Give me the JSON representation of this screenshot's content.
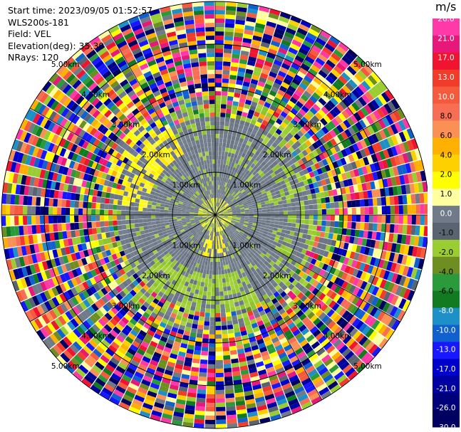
{
  "header": {
    "start_time": "Start time: 2023/09/05 01:52:57",
    "instrument": "WLS200s-181",
    "field": "Field: VEL",
    "elevation": "Elevation(deg): 35.30",
    "nrays": "NRays: 120"
  },
  "colorbar": {
    "unit": "m/s",
    "ticks": [
      "26.0",
      "21.0",
      "17.0",
      "13.0",
      "10.0",
      "8.0",
      "6.0",
      "4.0",
      "2.0",
      "1.0",
      "0.0",
      "-1.0",
      "-2.0",
      "-4.0",
      "-6.0",
      "-8.0",
      "-10.0",
      "-13.0",
      "-17.0",
      "-21.0",
      "-26.0",
      "-30.0"
    ],
    "colors": [
      "#ff3aa8",
      "#e8187a",
      "#f01430",
      "#f03c28",
      "#f55a3c",
      "#f86e55",
      "#fa9055",
      "#ffb000",
      "#ffd000",
      "#ffff00",
      "#ffffa0",
      "#707a88",
      "#5a6470",
      "#9acd32",
      "#6e8e22",
      "#2a9a3a",
      "#127a20",
      "#1e90c8",
      "#1060d0",
      "#1818ff",
      "#0000cc",
      "#0000a0",
      "#00007a",
      "#000060"
    ]
  },
  "chart_data": {
    "type": "ppi",
    "nrays": 120,
    "range_rings": [
      {
        "label": "1.00km"
      },
      {
        "label": "2.00km"
      },
      {
        "label": "3.00km"
      },
      {
        "label": "4.00km"
      },
      {
        "label": "5.00km"
      }
    ],
    "velocity_range": [
      -30.0,
      26.0
    ],
    "zones": [
      {
        "from_km": 0.0,
        "to_km": 0.4,
        "dominant": "mixed",
        "velocity": 0.0
      },
      {
        "from_km": 0.4,
        "to_km": 2.3,
        "dominant": "gray",
        "velocity": 0.0
      },
      {
        "from_km": 2.3,
        "to_km": 2.8,
        "dominant": "mixed",
        "velocity": 0.0
      },
      {
        "from_km": 2.8,
        "to_km": 5.0,
        "dominant": "noise",
        "velocity": null
      }
    ]
  }
}
